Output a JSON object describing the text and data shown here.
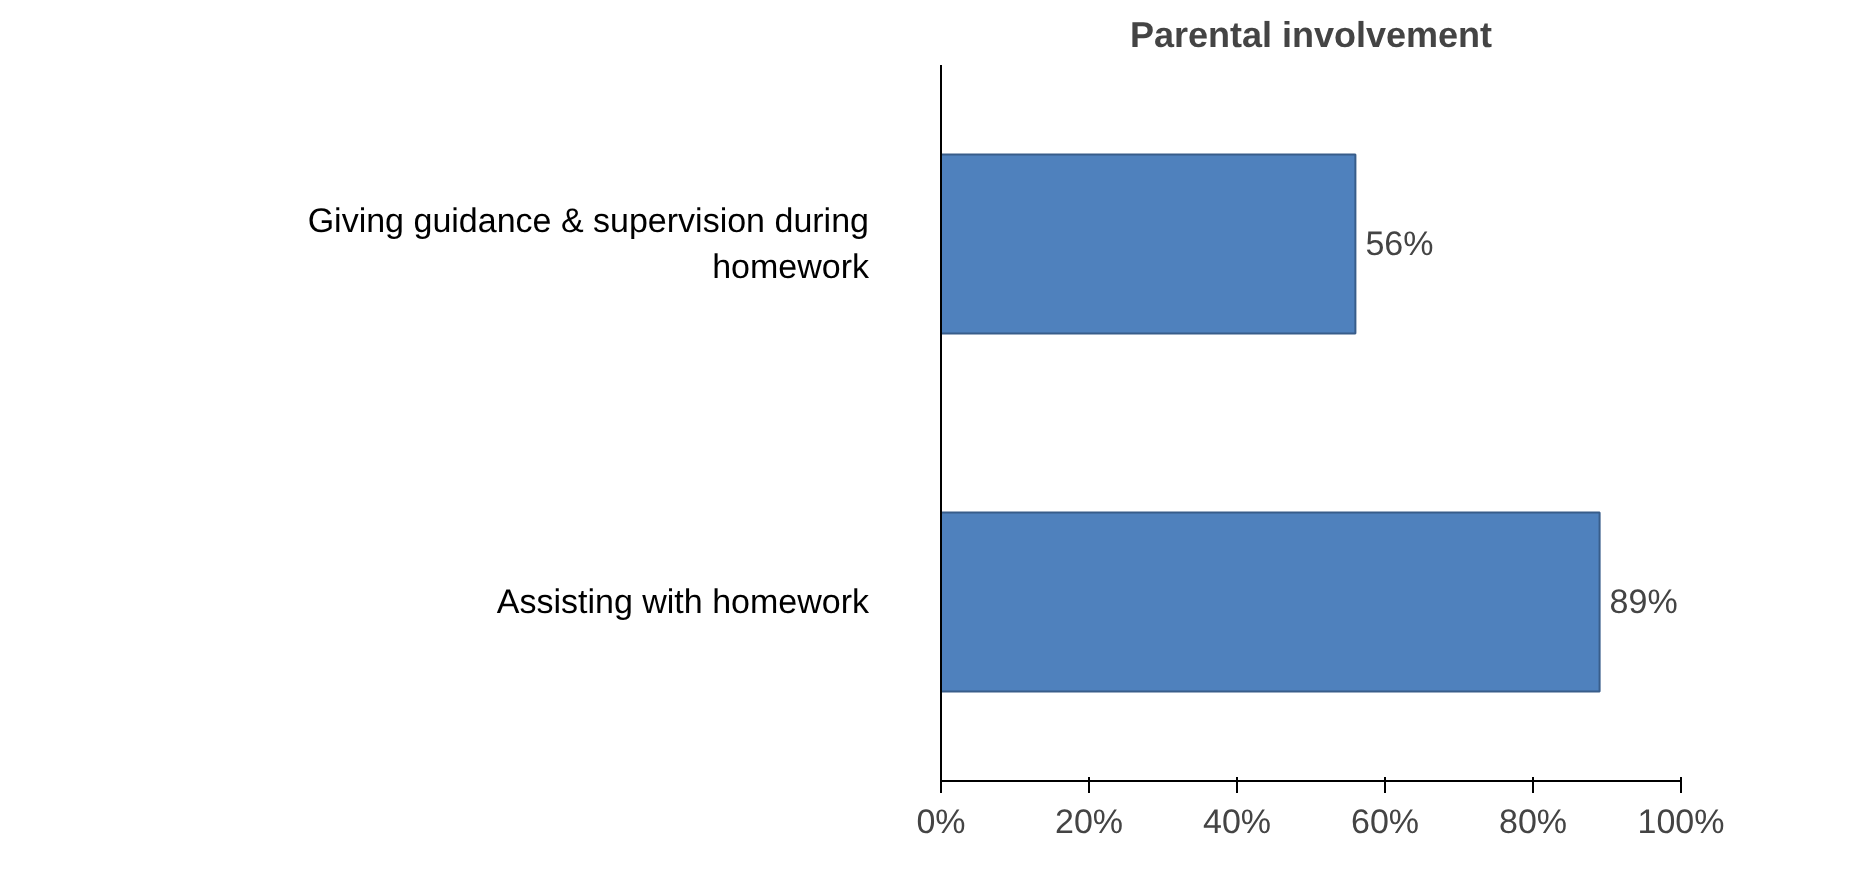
{
  "chart_data": {
    "type": "bar",
    "orientation": "horizontal",
    "title": "Parental involvement",
    "categories": [
      "Giving guidance & supervision during homework",
      "Assisting with homework"
    ],
    "values": [
      56,
      89
    ],
    "color": "#4f81bd",
    "value_labels": [
      "56%",
      "89%"
    ],
    "xlim": [
      0,
      100
    ],
    "xticks": [
      {
        "value": 0,
        "label": "0%"
      },
      {
        "value": 20,
        "label": "20%"
      },
      {
        "value": 40,
        "label": "40%"
      },
      {
        "value": 60,
        "label": "60%"
      },
      {
        "value": 80,
        "label": "80%"
      },
      {
        "value": 100,
        "label": "100%"
      }
    ],
    "grid": false
  }
}
